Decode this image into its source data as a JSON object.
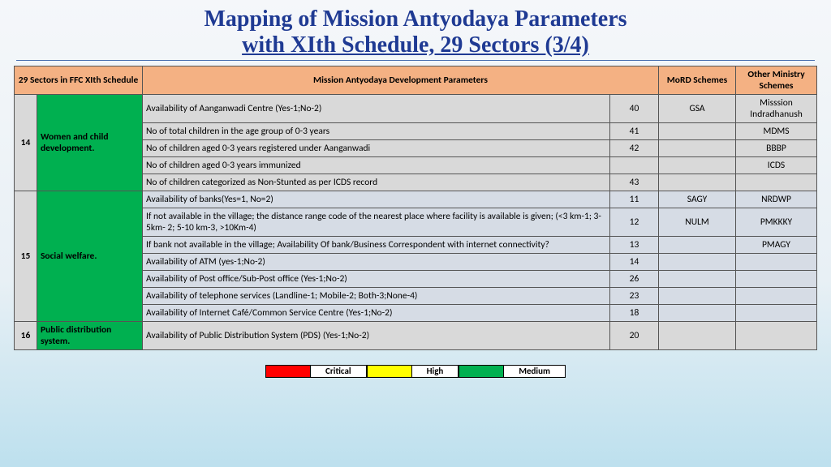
{
  "title_line1": "Mapping of Mission Antyodaya Parameters",
  "title_line2": "with XIth Schedule, 29 Sectors (3/4)",
  "headers": {
    "sectors": "29 Sectors in FFC XIth Schedule",
    "params": "Mission Antyodaya Development Parameters",
    "mord": "MoRD Schemes",
    "other": "Other Ministry Schemes"
  },
  "sectors": [
    {
      "num": "14",
      "name": "Women and child development."
    },
    {
      "num": "15",
      "name": "Social welfare."
    },
    {
      "num": "16",
      "name": "Public distribution system."
    }
  ],
  "rows14": [
    {
      "p": "Availability of Aanganwadi Centre (Yes-1;No-2)",
      "c": "40",
      "m": "GSA",
      "o": "Misssion Indradhanush"
    },
    {
      "p": "No of total children in the age group of 0-3 years",
      "c": "41",
      "m": "",
      "o": "MDMS"
    },
    {
      "p": "No of children aged 0-3 years registered under Aanganwadi",
      "c": "42",
      "m": "",
      "o": "BBBP"
    },
    {
      "p": "No of children aged 0-3 years immunized",
      "c": "",
      "m": "",
      "o": "ICDS"
    },
    {
      "p": "No of children categorized as Non-Stunted as per ICDS record",
      "c": "43",
      "m": "",
      "o": ""
    }
  ],
  "rows15": [
    {
      "p": "Availability of banks(Yes=1, No=2)",
      "c": "11",
      "m": "SAGY",
      "o": "NRDWP"
    },
    {
      "p": "If not available in the village; the distance range code of the nearest place where facility is available is given; (<3 km-1; 3-5km- 2; 5-10 km-3, >10Km-4)",
      "c": "12",
      "m": "NULM",
      "o": "PMKKKY"
    },
    {
      "p": "If bank not available in the village; Availability Of bank/Business Correspondent with internet connectivity?",
      "c": "13",
      "m": "",
      "o": "PMAGY"
    },
    {
      "p": "Availability of ATM (yes-1;No-2)",
      "c": "14",
      "m": "",
      "o": ""
    },
    {
      "p": "Availability of Post office/Sub-Post office (Yes-1;No-2)",
      "c": "26",
      "m": "",
      "o": ""
    },
    {
      "p": "Availability of telephone services (Landline-1; Mobile-2; Both-3;None-4)",
      "c": "23",
      "m": "",
      "o": ""
    },
    {
      "p": "Availability of Internet Café/Common Service Centre (Yes-1;No-2)",
      "c": "18",
      "m": "",
      "o": ""
    }
  ],
  "rows16": [
    {
      "p": "Availability of Public Distribution System (PDS) (Yes-1;No-2)",
      "c": "20",
      "m": "",
      "o": ""
    }
  ],
  "legend": {
    "critical": "Critical",
    "high": "High",
    "medium": "Medium"
  }
}
